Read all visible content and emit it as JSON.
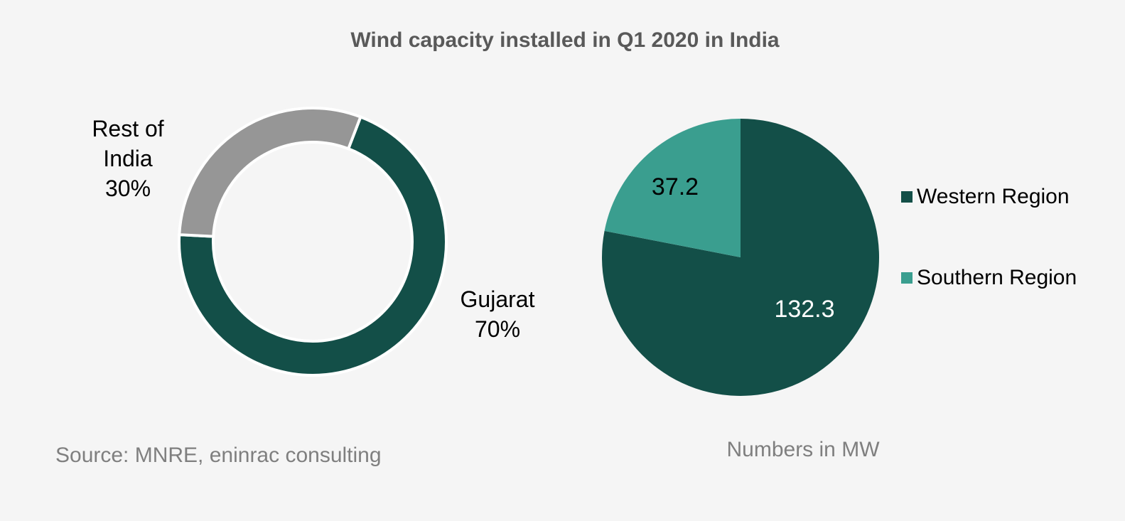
{
  "title": "Wind capacity installed in Q1 2020 in India",
  "source": "Source: MNRE, eninrac consulting",
  "chart_data": [
    {
      "type": "donut",
      "categories": [
        "Gujarat",
        "Rest of India"
      ],
      "values": [
        70,
        30
      ],
      "value_labels": [
        "70%",
        "30%"
      ],
      "colors": [
        "#134f48",
        "#969696"
      ]
    },
    {
      "type": "pie",
      "categories": [
        "Western Region",
        "Southern Region"
      ],
      "values": [
        132.3,
        37.2
      ],
      "colors": [
        "#134f48",
        "#3a9e8f"
      ],
      "legend": "right",
      "note": "Numbers in MW"
    }
  ]
}
